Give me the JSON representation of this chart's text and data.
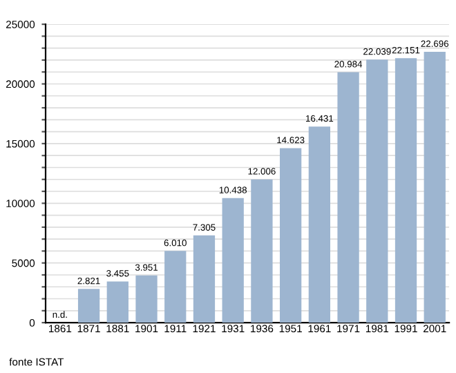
{
  "chart_data": {
    "type": "bar",
    "categories": [
      "1861",
      "1871",
      "1881",
      "1901",
      "1911",
      "1921",
      "1931",
      "1936",
      "1951",
      "1961",
      "1971",
      "1981",
      "1991",
      "2001"
    ],
    "values": [
      null,
      2821,
      3455,
      3951,
      6010,
      7305,
      10438,
      12006,
      14623,
      16431,
      20984,
      22039,
      22151,
      22696
    ],
    "value_labels": [
      "n.d.",
      "2.821",
      "3.455",
      "3.951",
      "6.010",
      "7.305",
      "10.438",
      "12.006",
      "14.623",
      "16.431",
      "20.984",
      "22.039",
      "22.151",
      "22.696"
    ],
    "color": "#9db5d0",
    "ylim": [
      0,
      25000
    ],
    "yticks": [
      0,
      {
        "value": 1000,
        "label": null
      },
      {
        "value": 2000,
        "label": null
      },
      {
        "value": 3000,
        "label": null
      },
      {
        "value": 4000,
        "label": null
      },
      5000,
      {
        "value": 6000,
        "label": null
      },
      {
        "value": 7000,
        "label": null
      },
      {
        "value": 8000,
        "label": null
      },
      {
        "value": 9000,
        "label": null
      },
      10000,
      {
        "value": 11000,
        "label": null
      },
      {
        "value": 12000,
        "label": null
      },
      {
        "value": 13000,
        "label": null
      },
      {
        "value": 14000,
        "label": null
      },
      15000,
      {
        "value": 16000,
        "label": null
      },
      {
        "value": 17000,
        "label": null
      },
      {
        "value": 18000,
        "label": null
      },
      {
        "value": 19000,
        "label": null
      },
      20000,
      {
        "value": 21000,
        "label": null
      },
      {
        "value": 22000,
        "label": null
      },
      {
        "value": 23000,
        "label": null
      },
      {
        "value": 24000,
        "label": null
      },
      25000
    ],
    "grid": "y",
    "annotations": [
      "fonte ISTAT"
    ]
  }
}
